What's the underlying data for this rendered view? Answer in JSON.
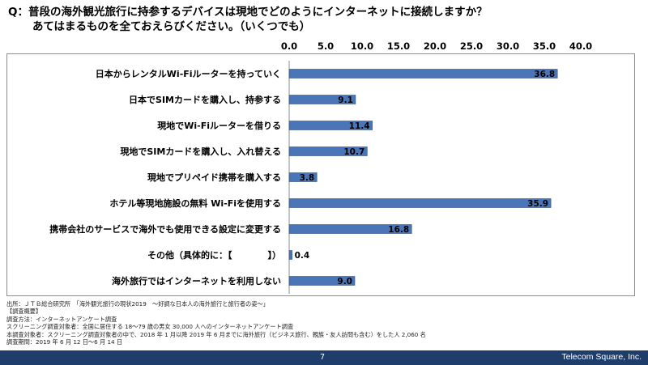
{
  "question": {
    "line1": "Q：普段の海外観光旅行に持参するデバイスは現地でどのようにインターネットに接続しますか？",
    "line2": "あてはまるものを全ておえらびください。（いくつでも）"
  },
  "chart_data": {
    "type": "bar",
    "orientation": "horizontal",
    "categories": [
      "日本からレンタルWi-Fiルーターを持っていく",
      "日本でSIMカードを購入し、持参する",
      "現地でWi-Fiルーターを借りる",
      "現地でSIMカードを購入し、入れ替える",
      "現地でプリペイド携帯を購入する",
      "ホテル等現地施設の無料 Wi-Fiを使用する",
      "携帯会社のサービスで海外でも使用できる設定に変更する",
      "その他（具体的に：【　　　　】）",
      "海外旅行ではインターネットを利用しない"
    ],
    "values": [
      36.8,
      9.1,
      11.4,
      10.7,
      3.8,
      35.9,
      16.8,
      0.4,
      9.0
    ],
    "value_labels": [
      "36.8",
      "9.1",
      "11.4",
      "10.7",
      "3.8",
      "35.9",
      "16.8",
      "0.4",
      "9.0"
    ],
    "ticks": [
      "0.0",
      "5.0",
      "10.0",
      "15.0",
      "20.0",
      "25.0",
      "30.0",
      "35.0",
      "40.0"
    ],
    "xlim": [
      0,
      40
    ],
    "axis_position": "top",
    "bar_color": "#4a76b8",
    "bar_edge_color": "#2f4f80",
    "grid": false
  },
  "source": {
    "lines": [
      "出所：ＪＴＢ総合研究所　「海外観光旅行の現状2019　～好調な日本人の海外旅行と旅行者の姿～」",
      "【調査概要】",
      "調査方法：インターネットアンケート調査",
      "スクリーニング調査対象者：全国に居住する 18～79 歳の男女 30,000 人へのインターネットアンケート調査",
      "本調査対象者：スクリーニング調査対象者の中で、2018 年 1 月以降 2019 年 6 月までに海外旅行（ビジネス旅行、親族・友人訪問も含む）をした人 2,060 名",
      "調査期間：2019 年 6 月 12 日～6 月 14 日"
    ]
  },
  "footer": {
    "page": "7",
    "brand": "Telecom Square, Inc.",
    "color": "#1f3d6b"
  }
}
